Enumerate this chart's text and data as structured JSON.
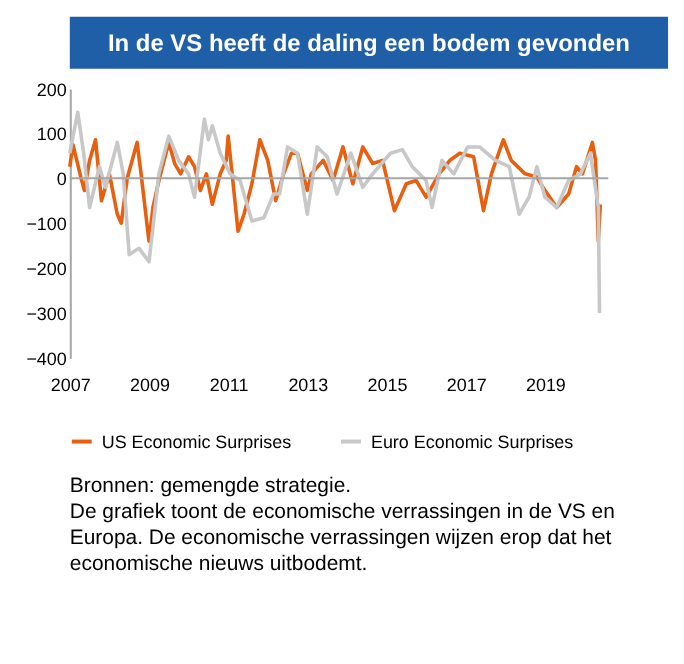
{
  "chart_data": {
    "type": "line",
    "title": "In de VS heeft de daling een bodem gevonden",
    "xlim": [
      2007,
      2020.6
    ],
    "xticks": [
      2007,
      2009,
      2011,
      2013,
      2015,
      2017,
      2019
    ],
    "ylim": [
      -400,
      200
    ],
    "yticks": [
      -400,
      -300,
      -200,
      -100,
      0,
      100,
      200
    ],
    "grid": false,
    "legend": "bottom",
    "marker": "none",
    "line_style": "solid",
    "ref_lines": [
      {
        "axis": "y",
        "value": 0,
        "color": "#a6a6a6"
      }
    ],
    "series": [
      {
        "name": "US Economic Surprises",
        "color": "#e8600f",
        "x": [
          2007.0,
          2007.08,
          2007.3,
          2007.37,
          2007.5,
          2007.65,
          2007.8,
          2008.0,
          2008.2,
          2008.3,
          2008.45,
          2008.7,
          2008.8,
          2009.0,
          2009.1,
          2009.25,
          2009.5,
          2009.65,
          2009.8,
          2010.0,
          2010.15,
          2010.3,
          2010.45,
          2010.6,
          2010.8,
          2010.95,
          2011.0,
          2011.1,
          2011.25,
          2011.4,
          2011.6,
          2011.8,
          2012.0,
          2012.2,
          2012.4,
          2012.6,
          2012.75,
          2013.0,
          2013.1,
          2013.4,
          2013.65,
          2013.9,
          2014.15,
          2014.4,
          2014.65,
          2014.9,
          2015.2,
          2015.5,
          2015.75,
          2016.0,
          2016.33,
          2016.6,
          2016.85,
          2017.2,
          2017.45,
          2017.65,
          2017.95,
          2018.15,
          2018.5,
          2018.8,
          2018.95,
          2019.3,
          2019.6,
          2019.8,
          2019.95,
          2020.2,
          2020.28,
          2020.35,
          2020.4
        ],
        "values": [
          26,
          75,
          -5,
          -27,
          40,
          86,
          -50,
          10,
          -80,
          -100,
          0,
          80,
          10,
          -140,
          -65,
          -5,
          80,
          33,
          10,
          48,
          26,
          -27,
          10,
          -58,
          10,
          40,
          94,
          10,
          -118,
          -80,
          -12,
          86,
          40,
          -50,
          10,
          56,
          56,
          -27,
          10,
          40,
          -5,
          70,
          -12,
          70,
          33,
          40,
          -72,
          -12,
          -5,
          -42,
          10,
          40,
          56,
          48,
          -72,
          10,
          86,
          40,
          10,
          3,
          -20,
          -65,
          -35,
          26,
          10,
          80,
          40,
          -140,
          -58
        ]
      },
      {
        "name": "Euro Economic Surprises",
        "color": "#c8c8c8",
        "x": [
          2007.0,
          2007.2,
          2007.35,
          2007.5,
          2007.75,
          2007.9,
          2008.2,
          2008.35,
          2008.5,
          2008.75,
          2009.0,
          2009.1,
          2009.25,
          2009.5,
          2009.75,
          2010.0,
          2010.15,
          2010.4,
          2010.5,
          2010.6,
          2010.8,
          2011.05,
          2011.3,
          2011.6,
          2011.9,
          2012.15,
          2012.3,
          2012.5,
          2012.75,
          2013.0,
          2013.25,
          2013.5,
          2013.75,
          2014.1,
          2014.4,
          2014.65,
          2015.1,
          2015.4,
          2015.65,
          2016.0,
          2016.15,
          2016.4,
          2016.7,
          2017.05,
          2017.35,
          2017.75,
          2018.1,
          2018.35,
          2018.6,
          2018.8,
          2019.0,
          2019.3,
          2019.6,
          2019.9,
          2020.15,
          2020.35,
          2020.38
        ],
        "values": [
          56,
          147,
          56,
          -65,
          26,
          -20,
          80,
          10,
          -170,
          -156,
          -186,
          -110,
          10,
          94,
          40,
          10,
          -42,
          132,
          86,
          117,
          56,
          10,
          -5,
          -95,
          -88,
          -35,
          -35,
          70,
          56,
          -80,
          70,
          48,
          -35,
          56,
          -20,
          10,
          56,
          64,
          26,
          -5,
          -65,
          40,
          10,
          70,
          70,
          40,
          26,
          -80,
          -42,
          26,
          -42,
          -65,
          -5,
          10,
          56,
          -65,
          -300
        ]
      }
    ],
    "annotations": [
      "Bronnen: gemengde strategie.",
      "De grafiek toont de economische verrassingen in de VS en Europa. De economische verrassingen wijzen erop dat het economische nieuws uitbodemt."
    ]
  }
}
